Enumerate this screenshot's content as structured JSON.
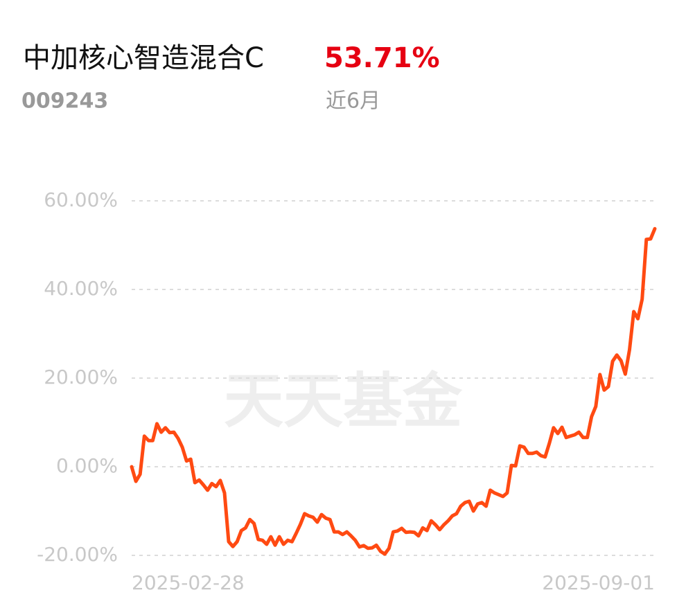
{
  "header": {
    "title": "中加核心智造混合C",
    "return": "53.71%",
    "code": "009243",
    "period": "近6月",
    "watermark": "天天基金"
  },
  "chart_data": {
    "type": "line",
    "color": "#ff4a12",
    "categories": [
      "2025-02-28",
      null,
      null,
      null,
      null,
      null,
      null,
      null,
      null,
      null,
      null,
      null,
      null,
      null,
      null,
      null,
      null,
      null,
      null,
      null,
      null,
      null,
      null,
      null,
      null,
      null,
      null,
      null,
      null,
      null,
      null,
      null,
      null,
      null,
      null,
      null,
      null,
      null,
      null,
      null,
      null,
      null,
      null,
      null,
      null,
      null,
      null,
      null,
      null,
      null,
      null,
      null,
      null,
      null,
      null,
      null,
      null,
      null,
      null,
      null,
      null,
      null,
      null,
      null,
      null,
      null,
      null,
      null,
      null,
      null,
      null,
      null,
      null,
      null,
      null,
      null,
      null,
      null,
      null,
      null,
      null,
      null,
      null,
      null,
      null,
      null,
      null,
      null,
      null,
      null,
      null,
      null,
      null,
      null,
      null,
      null,
      null,
      null,
      null,
      null,
      null,
      null,
      null,
      null,
      null,
      null,
      null,
      null,
      null,
      null,
      null,
      null,
      null,
      null,
      null,
      null,
      null,
      null,
      null,
      null,
      null,
      null,
      null,
      null,
      "2025-09-01"
    ],
    "values": [
      0,
      -3.3,
      -1.7,
      6.9,
      5.9,
      5.9,
      9.7,
      7.8,
      8.8,
      7.7,
      7.8,
      6.4,
      4.4,
      1.3,
      1.7,
      -3.6,
      -3.0,
      -4.1,
      -5.3,
      -3.8,
      -4.5,
      -3.1,
      -5.9,
      -16.9,
      -18.0,
      -16.9,
      -14.4,
      -13.8,
      -11.9,
      -12.8,
      -16.4,
      -16.6,
      -17.5,
      -15.8,
      -17.7,
      -15.8,
      -17.5,
      -16.6,
      -16.9,
      -15.0,
      -13.0,
      -10.6,
      -11.1,
      -11.4,
      -12.5,
      -10.8,
      -11.6,
      -11.9,
      -14.7,
      -14.7,
      -15.3,
      -14.7,
      -15.6,
      -16.6,
      -18.1,
      -17.8,
      -18.4,
      -18.3,
      -17.7,
      -19.1,
      -19.7,
      -18.4,
      -14.7,
      -14.5,
      -13.9,
      -14.8,
      -14.7,
      -14.8,
      -15.6,
      -13.8,
      -14.4,
      -12.2,
      -13.1,
      -14.2,
      -13.1,
      -12.2,
      -11.1,
      -10.6,
      -8.9,
      -8.1,
      -7.8,
      -10.0,
      -8.4,
      -8.1,
      -8.9,
      -5.3,
      -5.9,
      -6.3,
      -6.7,
      -5.9,
      0.3,
      0.2,
      4.7,
      4.4,
      3.0,
      3.0,
      3.3,
      2.5,
      2.2,
      5.3,
      8.8,
      7.5,
      8.9,
      6.6,
      6.9,
      7.2,
      7.8,
      6.6,
      6.6,
      11.3,
      13.6,
      20.8,
      17.3,
      18.1,
      23.8,
      25.2,
      23.9,
      20.9,
      26.4,
      35.0,
      33.4,
      37.8,
      51.3,
      51.4,
      53.71
    ],
    "ylim": [
      -20,
      60
    ],
    "yticks": [
      {
        "value": -20,
        "label": "-20.00%"
      },
      {
        "value": 0,
        "label": "0.00%"
      },
      {
        "value": 20,
        "label": "20.00%"
      },
      {
        "value": 40,
        "label": "40.00%"
      },
      {
        "value": 60,
        "label": "60.00%"
      }
    ],
    "grid": true
  }
}
